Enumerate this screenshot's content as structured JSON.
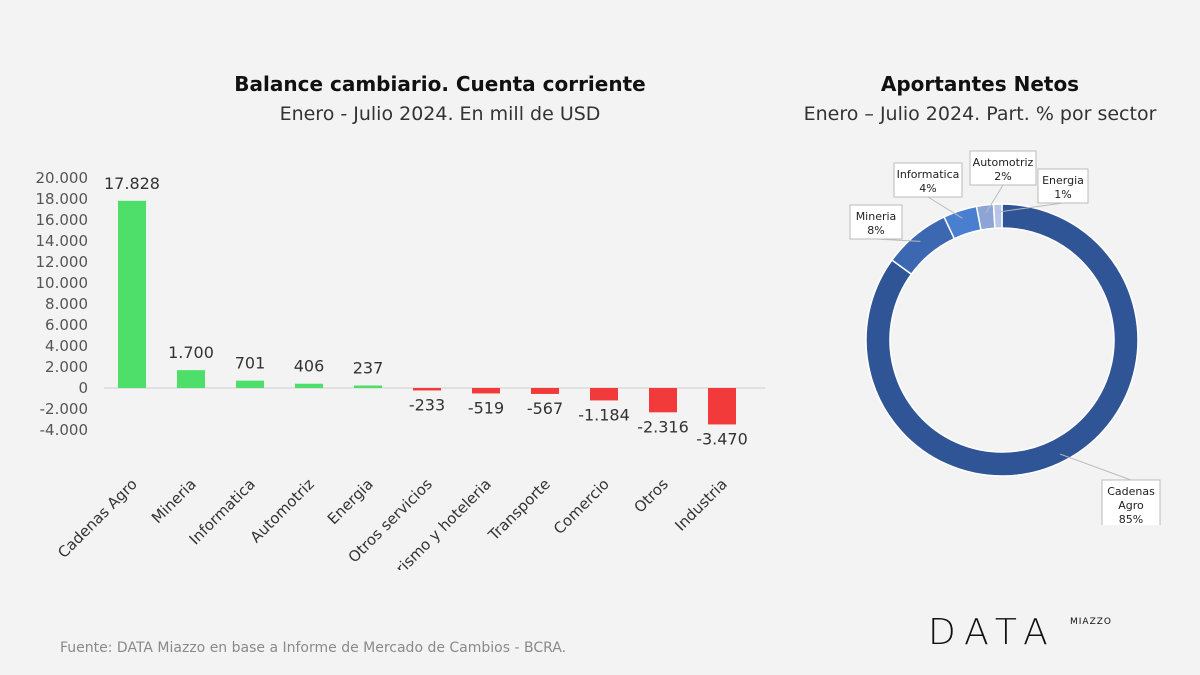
{
  "brand": {
    "main": "DATA",
    "sup": "MIAZZO"
  },
  "source": "Fuente: DATA Miazzo en base a Informe de Mercado de Cambios - BCRA.",
  "chart_data": [
    {
      "type": "bar",
      "title": "Balance cambiario. Cuenta corriente",
      "subtitle": "Enero - Julio 2024. En mill de USD",
      "categories": [
        "Cadenas Agro",
        "Mineria",
        "Informatica",
        "Automotriz",
        "Energia",
        "Otros servicios",
        "Turismo y hoteleria",
        "Transporte",
        "Comercio",
        "Otros",
        "Industria"
      ],
      "values": [
        17828,
        1700,
        701,
        406,
        237,
        -233,
        -519,
        -567,
        -1184,
        -2316,
        -3470
      ],
      "data_labels": [
        "17.828",
        "1.700",
        "701",
        "406",
        "237",
        "-233",
        "-519",
        "-567",
        "-1.184",
        "-2.316",
        "-3.470"
      ],
      "ylim": [
        -4000,
        20000
      ],
      "yticks": [
        "20.000",
        "18.000",
        "16.000",
        "14.000",
        "12.000",
        "10.000",
        "8.000",
        "6.000",
        "4.000",
        "2.000",
        "0",
        "-2.000",
        "-4.000"
      ],
      "colors": {
        "positive": "#4ddf6a",
        "negative": "#f23a3a",
        "axis": "#cfcfcf"
      },
      "grid": false
    },
    {
      "type": "pie",
      "title": "Aportantes Netos",
      "subtitle": "Enero – Julio 2024. Part. % por sector",
      "slices": [
        {
          "name": "Cadenas Agro",
          "value": 85,
          "label_lines": [
            "Cadenas",
            "Agro",
            "85%"
          ],
          "color": "#2f5596"
        },
        {
          "name": "Mineria",
          "value": 8,
          "label_lines": [
            "Mineria",
            "8%"
          ],
          "color": "#3c67b1"
        },
        {
          "name": "Informatica",
          "value": 4,
          "label_lines": [
            "Informatica",
            "4%"
          ],
          "color": "#4a7fd0"
        },
        {
          "name": "Automotriz",
          "value": 2,
          "label_lines": [
            "Automotriz",
            "2%"
          ],
          "color": "#8ca4d6"
        },
        {
          "name": "Energia",
          "value": 1,
          "label_lines": [
            "Energia",
            "1%"
          ],
          "color": "#b7c6e8"
        }
      ]
    }
  ]
}
